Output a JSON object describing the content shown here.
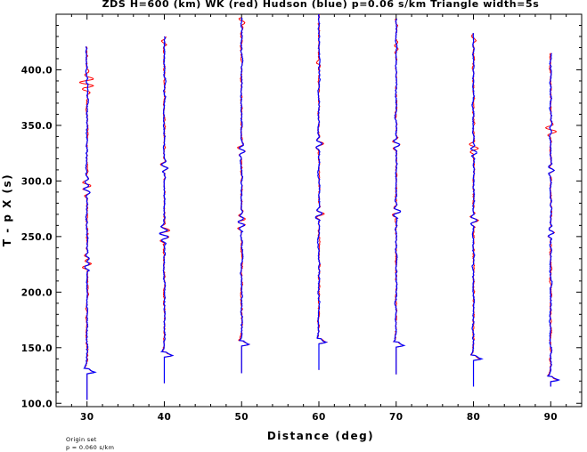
{
  "chart_data": {
    "type": "line",
    "title": "ZDS H=600 (km) WK (red) Hudson (blue) p=0.06 s/km Triangle width=5s",
    "xlabel": "Distance (deg)",
    "ylabel": "T - p X (s)",
    "xlim": [
      26,
      94
    ],
    "ylim": [
      97,
      450
    ],
    "x_ticks": [
      30,
      40,
      50,
      60,
      70,
      80,
      90
    ],
    "x_tick_labels": [
      "30",
      "40",
      "50",
      "60",
      "70",
      "80",
      "90"
    ],
    "y_ticks": [
      100,
      150,
      200,
      250,
      300,
      350,
      400
    ],
    "y_tick_labels": [
      "100.0",
      "150.0",
      "200.0",
      "250.0",
      "300.0",
      "350.0",
      "400.0"
    ],
    "grid": false,
    "series": [
      {
        "name": "WK (red)",
        "color": "#ff0000"
      },
      {
        "name": "Hudson (blue)",
        "color": "#0000ff"
      }
    ],
    "traces": [
      {
        "distance": 30,
        "start_time": 103,
        "onset_time": 128,
        "end_time": 421,
        "red_events": [
          {
            "t": 128,
            "amp": 1.0
          },
          {
            "t": 225,
            "amp": 0.8
          },
          {
            "t": 230,
            "amp": 0.5
          },
          {
            "t": 291,
            "amp": 0.45
          },
          {
            "t": 298,
            "amp": 0.5
          },
          {
            "t": 383,
            "amp": 0.6
          },
          {
            "t": 390,
            "amp": 0.9
          }
        ],
        "blue_events": [
          {
            "t": 128,
            "amp": 1.0
          },
          {
            "t": 225,
            "amp": 0.45
          },
          {
            "t": 230,
            "amp": 0.35
          },
          {
            "t": 291,
            "amp": 0.35
          },
          {
            "t": 298,
            "amp": 0.25
          },
          {
            "t": 390,
            "amp": 0.1
          }
        ]
      },
      {
        "distance": 40,
        "start_time": 118,
        "onset_time": 143,
        "end_time": 430,
        "red_events": [
          {
            "t": 143,
            "amp": 1.0
          },
          {
            "t": 249,
            "amp": 0.6
          },
          {
            "t": 256,
            "amp": 0.55
          },
          {
            "t": 313,
            "amp": 0.45
          },
          {
            "t": 425,
            "amp": 0.3
          }
        ],
        "blue_events": [
          {
            "t": 143,
            "amp": 1.0
          },
          {
            "t": 249,
            "amp": 0.5
          },
          {
            "t": 256,
            "amp": 0.4
          },
          {
            "t": 313,
            "amp": 0.45
          }
        ]
      },
      {
        "distance": 50,
        "start_time": 127,
        "onset_time": 153,
        "end_time": 447,
        "red_events": [
          {
            "t": 153,
            "amp": 1.0
          },
          {
            "t": 260,
            "amp": 0.55
          },
          {
            "t": 266,
            "amp": 0.5
          },
          {
            "t": 328,
            "amp": 0.55
          },
          {
            "t": 445,
            "amp": 0.4
          }
        ],
        "blue_events": [
          {
            "t": 153,
            "amp": 1.0
          },
          {
            "t": 260,
            "amp": 0.45
          },
          {
            "t": 266,
            "amp": 0.35
          },
          {
            "t": 328,
            "amp": 0.4
          }
        ]
      },
      {
        "distance": 60,
        "start_time": 130,
        "onset_time": 155,
        "end_time": 450,
        "red_events": [
          {
            "t": 155,
            "amp": 1.0
          },
          {
            "t": 270,
            "amp": 0.55
          },
          {
            "t": 334,
            "amp": 0.5
          },
          {
            "t": 405,
            "amp": 0.25
          }
        ],
        "blue_events": [
          {
            "t": 155,
            "amp": 1.0
          },
          {
            "t": 270,
            "amp": 0.45
          },
          {
            "t": 334,
            "amp": 0.4
          }
        ]
      },
      {
        "distance": 70,
        "start_time": 126,
        "onset_time": 152,
        "end_time": 446,
        "red_events": [
          {
            "t": 152,
            "amp": 1.0
          },
          {
            "t": 272,
            "amp": 0.55
          },
          {
            "t": 333,
            "amp": 0.5
          },
          {
            "t": 420,
            "amp": 0.25
          }
        ],
        "blue_events": [
          {
            "t": 152,
            "amp": 1.0
          },
          {
            "t": 272,
            "amp": 0.45
          },
          {
            "t": 333,
            "amp": 0.4
          }
        ]
      },
      {
        "distance": 80,
        "start_time": 115,
        "onset_time": 140,
        "end_time": 433,
        "red_events": [
          {
            "t": 140,
            "amp": 1.0
          },
          {
            "t": 264,
            "amp": 0.55
          },
          {
            "t": 330,
            "amp": 0.6
          },
          {
            "t": 428,
            "amp": 0.25
          }
        ],
        "blue_events": [
          {
            "t": 140,
            "amp": 1.0
          },
          {
            "t": 264,
            "amp": 0.45
          },
          {
            "t": 326,
            "amp": 0.45
          }
        ]
      },
      {
        "distance": 90,
        "start_time": 115,
        "onset_time": 121,
        "end_time": 415,
        "red_events": [
          {
            "t": 121,
            "amp": 1.0
          },
          {
            "t": 253,
            "amp": 0.4
          },
          {
            "t": 310,
            "amp": 0.3
          },
          {
            "t": 346,
            "amp": 0.8
          }
        ],
        "blue_events": [
          {
            "t": 121,
            "amp": 1.0
          },
          {
            "t": 253,
            "amp": 0.4
          },
          {
            "t": 310,
            "amp": 0.35
          },
          {
            "t": 346,
            "amp": 0.15
          }
        ]
      }
    ]
  },
  "footnote": {
    "line1": "Origin set",
    "line2": "p = 0.060 s/km"
  }
}
